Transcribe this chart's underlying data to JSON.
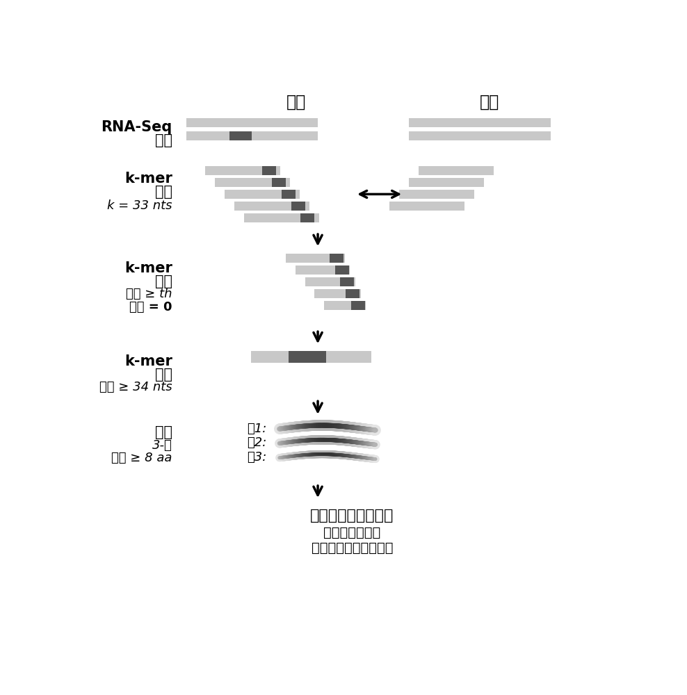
{
  "bg_color": "#ffffff",
  "light_gray": "#c8c8c8",
  "dark_gray": "#555555",
  "text_color": "#000000",
  "title_cancer": "癌症",
  "title_normal": "正常",
  "label_rnaseq": "RNA-Seq",
  "label_reads": "读数",
  "label_kmer1": "k-mer",
  "label_kmer1b": "产生",
  "label_kmer1c": "k = 33 nts",
  "label_kmer2": "k-mer",
  "label_kmer2b": "过滤",
  "label_kmer2c": "癌症 ≥ th",
  "label_kmer2d": "正常 = 0",
  "label_kmer3": "k-mer",
  "label_kmer3b": "组装",
  "label_kmer3c": "长度 ≥ 34 nts",
  "label_trans": "翻译",
  "label_trans2": "3-框",
  "label_trans3": "长度 ≥ 8 aa",
  "label_frame1": "框1:",
  "label_frame2": "框2:",
  "label_frame3": "框3:",
  "label_result1": "癌症特异性蜗白质组",
  "label_result2": "非典型翻译事件",
  "label_result3": "结构变体（融合，等）"
}
